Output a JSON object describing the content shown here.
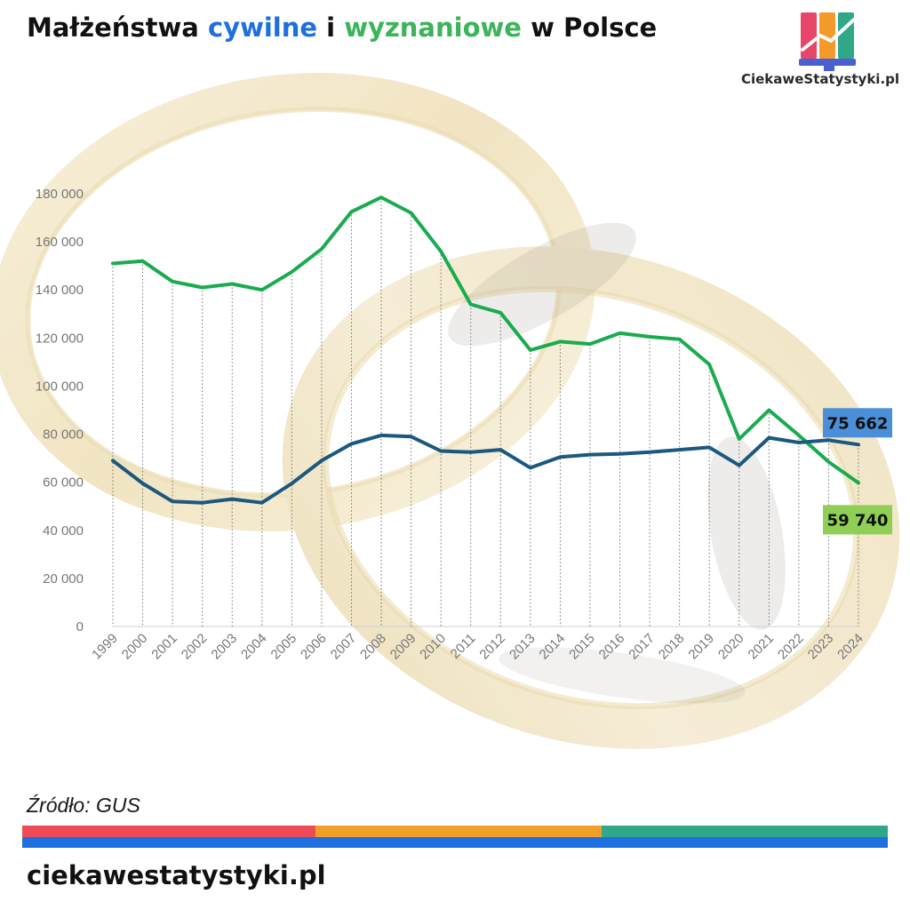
{
  "title": {
    "part1": "Małżeństwa ",
    "civil": "cywilne",
    "part2": " i ",
    "religious": "wyznaniowe",
    "part3": " w Polsce"
  },
  "logo": {
    "text": "CiekaweStatystyki.pl",
    "icon": "bar-chart-logo-icon",
    "colors": [
      "#e8456b",
      "#f39a2a",
      "#2fa88a",
      "#1e6fe0"
    ]
  },
  "source": "Źródło: GUS",
  "footer": "ciekawestatystyki.pl",
  "stripe_colors": [
    "#ef4b56",
    "#f0a028",
    "#2fa88a",
    "#1e6fe0"
  ],
  "chart_data": {
    "type": "line",
    "title": "Małżeństwa cywilne i wyznaniowe w Polsce",
    "xlabel": "",
    "ylabel": "",
    "ylim": [
      0,
      180000
    ],
    "yticks": [
      0,
      20000,
      40000,
      60000,
      80000,
      100000,
      120000,
      140000,
      160000,
      180000
    ],
    "ytick_labels": [
      "0",
      "20 000",
      "40 000",
      "60 000",
      "80 000",
      "100 000",
      "120 000",
      "140 000",
      "160 000",
      "180 000"
    ],
    "grid": "vertical-dotted",
    "legend": "none",
    "categories": [
      "1999",
      "2000",
      "2001",
      "2002",
      "2003",
      "2004",
      "2005",
      "2006",
      "2007",
      "2008",
      "2009",
      "2010",
      "2011",
      "2012",
      "2013",
      "2014",
      "2015",
      "2016",
      "2017",
      "2018",
      "2019",
      "2020",
      "2021",
      "2022",
      "2023",
      "2024"
    ],
    "series": [
      {
        "color": "#1aab4f",
        "values": [
          151000,
          152000,
          143500,
          141000,
          142500,
          140000,
          147500,
          157000,
          172500,
          178500,
          172000,
          156000,
          134000,
          130500,
          115000,
          118500,
          117500,
          122000,
          120500,
          119500,
          109000,
          78000,
          90000,
          79500,
          68500,
          59740
        ],
        "end_label": "59 740",
        "label_color": "#8fcf55"
      },
      {
        "color": "#1b5880",
        "values": [
          69000,
          59500,
          52000,
          51500,
          53000,
          51500,
          59500,
          69000,
          76000,
          79500,
          79000,
          73000,
          72500,
          73500,
          66000,
          70500,
          71500,
          71800,
          72500,
          73500,
          74500,
          67000,
          78500,
          76500,
          77500,
          75662
        ],
        "end_label": "75 662",
        "label_color": "#4a8fd8"
      }
    ]
  }
}
